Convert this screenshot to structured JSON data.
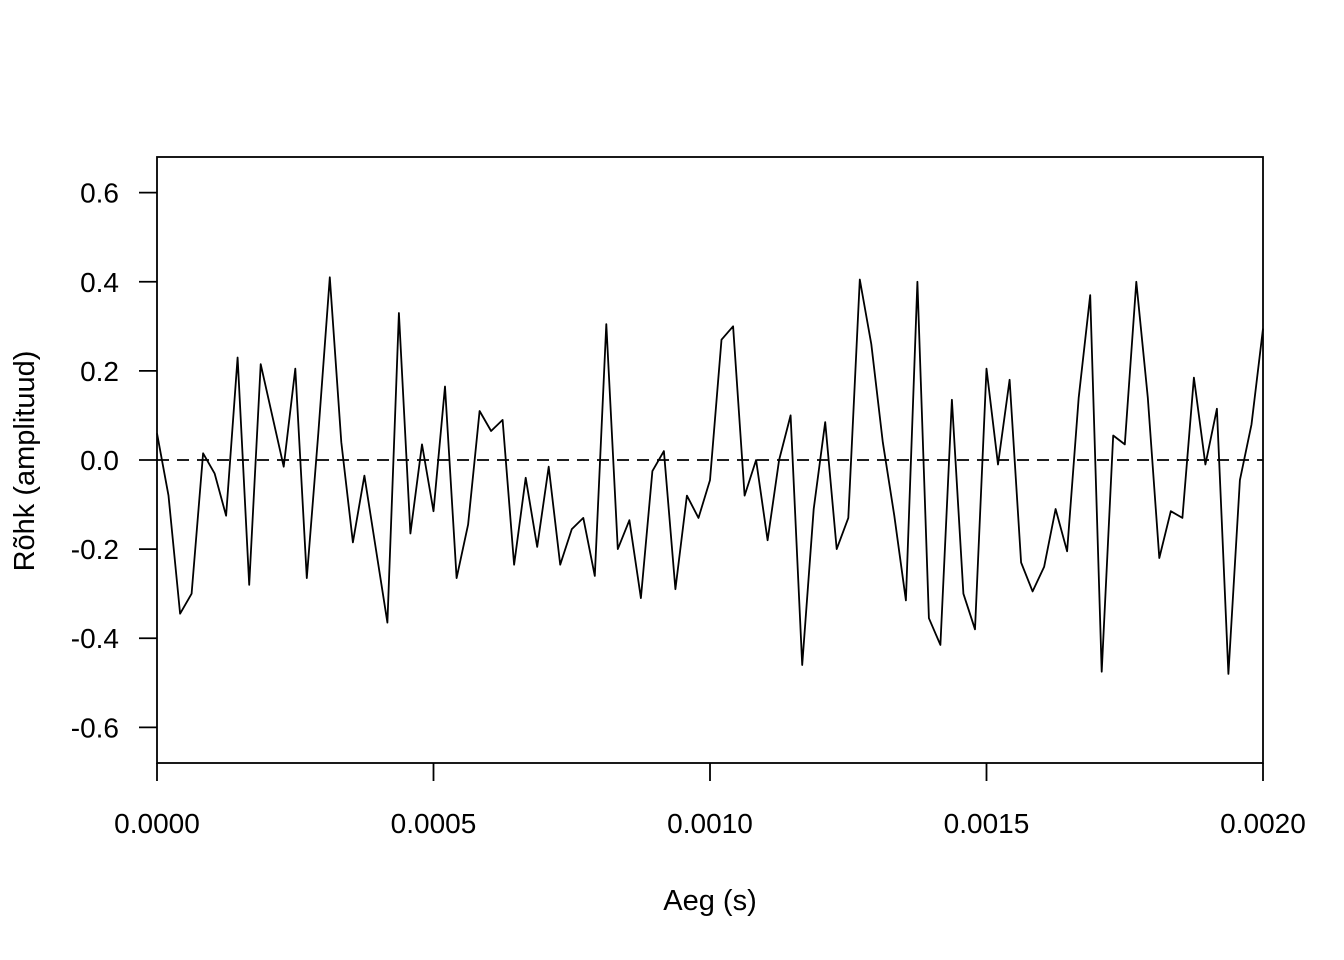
{
  "chart_data": {
    "type": "line",
    "title": "",
    "xlabel": "Aeg (s)",
    "ylabel": "Rõhk (amplituud)",
    "xlim": [
      0,
      0.002
    ],
    "ylim": [
      -0.68,
      0.68
    ],
    "x_ticks": [
      {
        "value": 0,
        "label": "0.0000"
      },
      {
        "value": 0.0005,
        "label": "0.0005"
      },
      {
        "value": 0.001,
        "label": "0.0010"
      },
      {
        "value": 0.0015,
        "label": "0.0015"
      },
      {
        "value": 0.002,
        "label": "0.0020"
      }
    ],
    "y_ticks": [
      {
        "value": 0.6,
        "label": "0.6"
      },
      {
        "value": 0.4,
        "label": "0.4"
      },
      {
        "value": 0.2,
        "label": "0.2"
      },
      {
        "value": 0.0,
        "label": "0.0"
      },
      {
        "value": -0.2,
        "label": "-0.2"
      },
      {
        "value": -0.4,
        "label": "-0.4"
      },
      {
        "value": -0.6,
        "label": "-0.6"
      }
    ],
    "reference_line": {
      "y": 0,
      "style": "dashed"
    },
    "grid": false,
    "legend": "none",
    "line_color": "#000000",
    "series": [
      {
        "x": [
          0,
          2.08e-05,
          4.17e-05,
          6.25e-05,
          8.33e-05,
          0.0001042,
          0.000125,
          0.0001458,
          0.0001667,
          0.0001875,
          0.0002083,
          0.0002292,
          0.00025,
          0.0002708,
          0.0002917,
          0.0003125,
          0.0003333,
          0.0003542,
          0.000375,
          0.0003958,
          0.0004167,
          0.0004375,
          0.0004583,
          0.0004792,
          0.0005,
          0.0005208,
          0.0005417,
          0.0005625,
          0.0005833,
          0.0006042,
          0.000625,
          0.0006458,
          0.0006667,
          0.0006875,
          0.0007083,
          0.0007292,
          0.00075,
          0.0007708,
          0.0007917,
          0.0008125,
          0.0008333,
          0.0008542,
          0.000875,
          0.0008958,
          0.0009167,
          0.0009375,
          0.0009583,
          0.0009792,
          0.001,
          0.0010208,
          0.0010417,
          0.0010625,
          0.0010833,
          0.0011042,
          0.001125,
          0.0011458,
          0.0011667,
          0.0011875,
          0.0012083,
          0.0012292,
          0.00125,
          0.0012708,
          0.0012917,
          0.0013125,
          0.0013333,
          0.0013542,
          0.001375,
          0.0013958,
          0.0014167,
          0.0014375,
          0.0014583,
          0.0014792,
          0.0015,
          0.0015208,
          0.0015417,
          0.0015625,
          0.0015833,
          0.0016042,
          0.001625,
          0.0016458,
          0.0016667,
          0.0016875,
          0.0017083,
          0.0017292,
          0.00175,
          0.0017708,
          0.0017917,
          0.0018125,
          0.0018333,
          0.0018542,
          0.001875,
          0.0018958,
          0.0019167,
          0.0019375,
          0.0019583,
          0.0019792,
          0.002
        ],
        "values": [
          0.06,
          -0.08,
          -0.345,
          -0.3,
          0.015,
          -0.03,
          -0.125,
          0.23,
          -0.28,
          0.215,
          0.1,
          -0.015,
          0.205,
          -0.265,
          0.06,
          0.41,
          0.04,
          -0.185,
          -0.035,
          -0.2,
          -0.365,
          0.33,
          -0.165,
          0.035,
          -0.115,
          0.165,
          -0.265,
          -0.145,
          0.11,
          0.065,
          0.09,
          -0.235,
          -0.04,
          -0.195,
          -0.015,
          -0.235,
          -0.155,
          -0.13,
          -0.26,
          0.305,
          -0.2,
          -0.135,
          -0.31,
          -0.025,
          0.02,
          -0.29,
          -0.08,
          -0.13,
          -0.045,
          0.27,
          0.3,
          -0.08,
          0,
          -0.18,
          0,
          0.1,
          -0.46,
          -0.11,
          0.085,
          -0.2,
          -0.13,
          0.405,
          0.26,
          0.04,
          -0.125,
          -0.315,
          0.4,
          -0.355,
          -0.415,
          0.135,
          -0.3,
          -0.38,
          0.205,
          -0.01,
          0.18,
          -0.23,
          -0.295,
          -0.24,
          -0.11,
          -0.205,
          0.14,
          0.37,
          -0.475,
          0.055,
          0.035,
          0.4,
          0.14,
          -0.22,
          -0.115,
          -0.13,
          0.185,
          -0.01,
          0.115,
          -0.48,
          -0.045,
          0.08,
          0.295
        ]
      }
    ]
  }
}
